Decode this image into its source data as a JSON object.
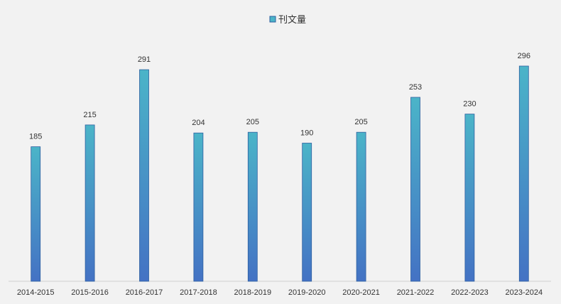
{
  "chart_data": {
    "type": "bar",
    "categories": [
      "2014-2015",
      "2015-2016",
      "2016-2017",
      "2017-2018",
      "2018-2019",
      "2019-2020",
      "2020-2021",
      "2021-2022",
      "2022-2023",
      "2023-2024"
    ],
    "series": [
      {
        "name": "刊文量",
        "values": [
          185,
          215,
          291,
          204,
          205,
          190,
          205,
          253,
          230,
          296
        ],
        "color_top": "#4bb4c8",
        "color_bottom": "#4472c4",
        "border_color": "#2e5fa0"
      }
    ],
    "title": "",
    "xlabel": "",
    "ylabel": "",
    "ylim": [
      0,
      300
    ],
    "grid": false,
    "legend_position": "top-center",
    "data_labels": true
  }
}
